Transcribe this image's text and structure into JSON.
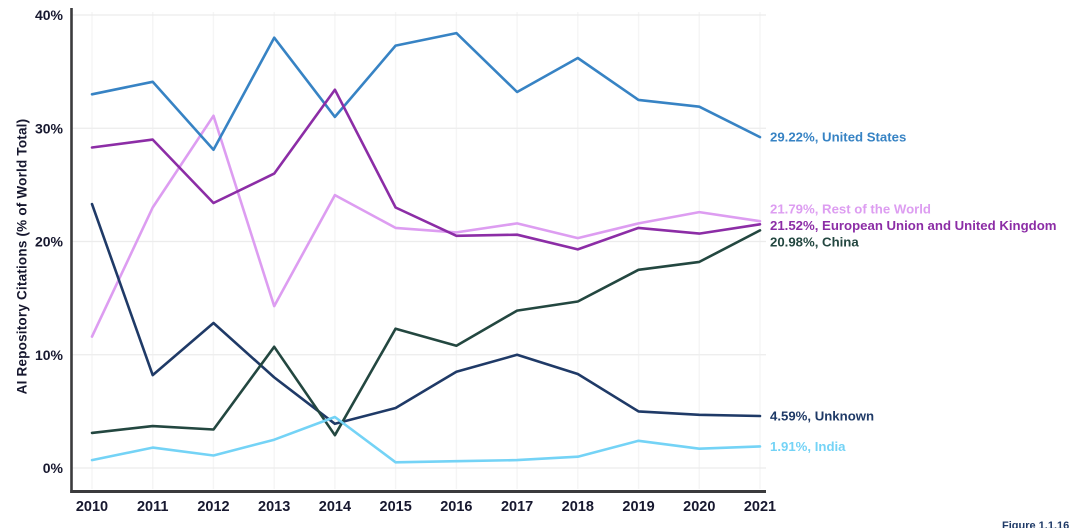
{
  "figure": {
    "ylabel": "AI Repository Citations (% of World Total)",
    "caption": "Figure 1.1.16"
  },
  "chart_data": {
    "type": "line",
    "title": "",
    "xlabel": "",
    "ylabel": "AI Repository Citations (% of World Total)",
    "x": [
      "2010",
      "2011",
      "2012",
      "2013",
      "2014",
      "2015",
      "2016",
      "2017",
      "2018",
      "2019",
      "2020",
      "2021"
    ],
    "ylim": [
      0,
      40
    ],
    "y_tick_step": 10,
    "y_tick_format": "percent",
    "grid": true,
    "legend_position": "end-of-line colored labels at right",
    "series": [
      {
        "name": "Rest of the World",
        "color": "#dd9df1",
        "end_label": "21.79%, Rest of the World",
        "values": [
          11.6,
          23.0,
          31.1,
          14.3,
          24.1,
          21.2,
          20.8,
          21.6,
          20.3,
          21.6,
          22.6,
          21.79
        ]
      },
      {
        "name": "United States",
        "color": "#3783c4",
        "end_label": "29.22%, United States",
        "values": [
          33.0,
          34.1,
          28.1,
          38.0,
          31.0,
          37.3,
          38.4,
          33.2,
          36.2,
          32.5,
          31.9,
          29.22
        ]
      },
      {
        "name": "European Union and United Kingdom",
        "color": "#8c2da6",
        "end_label": "21.52%, European Union and United Kingdom",
        "values": [
          28.3,
          29.0,
          23.4,
          26.0,
          33.4,
          23.0,
          20.5,
          20.6,
          19.3,
          21.2,
          20.7,
          21.52
        ]
      },
      {
        "name": "Unknown",
        "color": "#1f3a67",
        "end_label": "4.59%, Unknown",
        "values": [
          23.3,
          8.2,
          12.8,
          8.0,
          3.9,
          5.3,
          8.5,
          10.0,
          8.3,
          5.0,
          4.7,
          4.59
        ]
      },
      {
        "name": "China",
        "color": "#234740",
        "end_label": "20.98%, China",
        "values": [
          3.1,
          3.7,
          3.4,
          10.7,
          2.9,
          12.3,
          10.8,
          13.9,
          14.7,
          17.5,
          18.2,
          20.98
        ]
      },
      {
        "name": "India",
        "color": "#74d3f6",
        "end_label": "1.91%, India",
        "values": [
          0.7,
          1.8,
          1.1,
          2.5,
          4.5,
          0.5,
          0.6,
          0.7,
          1.0,
          2.4,
          1.7,
          1.91
        ]
      }
    ]
  }
}
